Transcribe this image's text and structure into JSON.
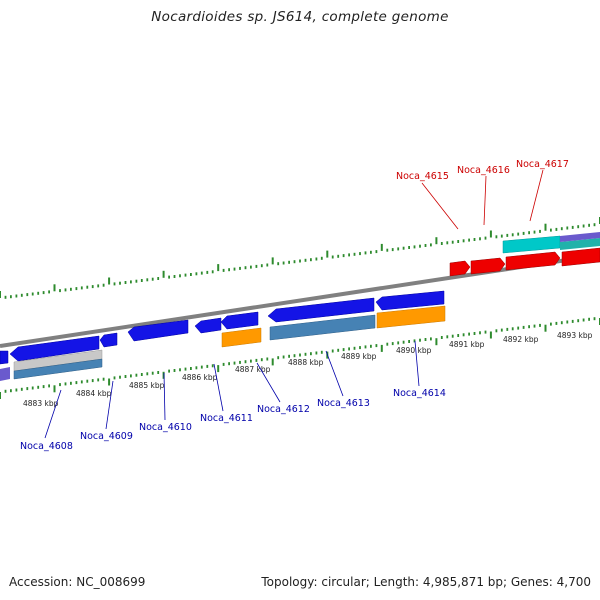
{
  "title": "Nocardioides sp. JS614, complete genome",
  "footer": {
    "accession": "Accession: NC_008699",
    "summary": "Topology: circular; Length: 4,985,871 bp; Genes: 4,700"
  },
  "colors": {
    "forward_labels": "#cc0000",
    "reverse_labels": "#0000aa",
    "ticks": "#2e8b2e",
    "backbone": "#808080"
  },
  "kbp_labels": [
    {
      "text": "4883 kbp"
    },
    {
      "text": "4884 kbp"
    },
    {
      "text": "4885 kbp"
    },
    {
      "text": "4886 kbp"
    },
    {
      "text": "4887 kbp"
    },
    {
      "text": "4888 kbp"
    },
    {
      "text": "4889 kbp"
    },
    {
      "text": "4890 kbp"
    },
    {
      "text": "4891 kbp"
    },
    {
      "text": "4892 kbp"
    },
    {
      "text": "4893 kbp"
    }
  ],
  "gene_labels_reverse": [
    {
      "text": "Noca_4608"
    },
    {
      "text": "Noca_4609"
    },
    {
      "text": "Noca_4610"
    },
    {
      "text": "Noca_4611"
    },
    {
      "text": "Noca_4612"
    },
    {
      "text": "Noca_4613"
    },
    {
      "text": "Noca_4614"
    }
  ],
  "gene_labels_forward": [
    {
      "text": "Noca_4615"
    },
    {
      "text": "Noca_4616"
    },
    {
      "text": "Noca_4617"
    }
  ]
}
